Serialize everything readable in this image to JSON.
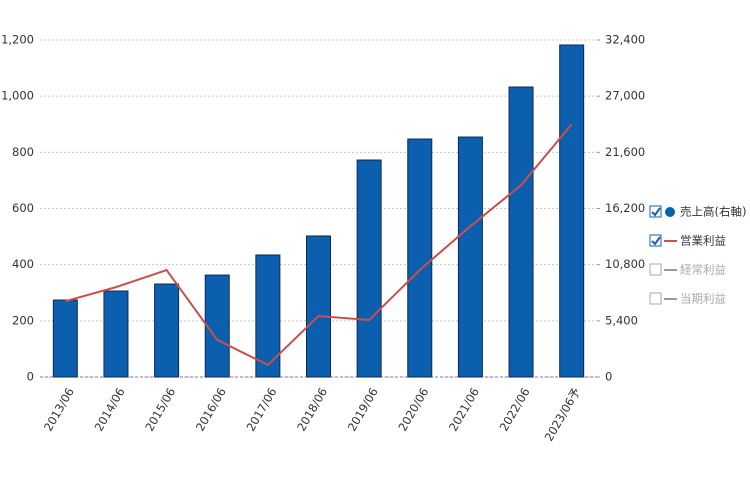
{
  "chart_data": {
    "type": "bar-line",
    "categories": [
      "2013/06",
      "2014/06",
      "2015/06",
      "2016/06",
      "2017/06",
      "2018/06",
      "2019/06",
      "2020/06",
      "2021/06",
      "2022/06",
      "2023/06予"
    ],
    "series": [
      {
        "name": "売上高(右軸)",
        "type": "bar",
        "axis": "y2",
        "color": "#0b5fae",
        "visible": true,
        "values": [
          7400,
          8270,
          8940,
          9800,
          11730,
          13560,
          20860,
          22880,
          23070,
          27880,
          31920
        ]
      },
      {
        "name": "営業利益",
        "type": "line",
        "color": "#c9504a",
        "visible": true,
        "values": [
          270,
          320,
          381,
          132,
          43,
          217,
          203,
          381,
          537,
          683,
          900
        ]
      },
      {
        "name": "経常利益",
        "type": "line",
        "color": "#999999",
        "visible": false
      },
      {
        "name": "当期利益",
        "type": "line",
        "color": "#999999",
        "visible": false
      }
    ],
    "ylim": [
      0,
      1200
    ],
    "yticks": [
      0,
      200,
      400,
      600,
      800,
      {
        "value": 1000,
        "label": "1,000"
      },
      {
        "value": 1200,
        "label": "1,200"
      }
    ],
    "y2lim": [
      0,
      32400
    ],
    "y2ticks": [
      0,
      {
        "value": 5400,
        "label": "5,400"
      },
      {
        "value": 10800,
        "label": "10,800"
      },
      {
        "value": 16200,
        "label": "16,200"
      },
      {
        "value": 21600,
        "label": "21,600"
      },
      {
        "value": 27000,
        "label": "27,000"
      },
      {
        "value": 32400,
        "label": "32,400"
      }
    ],
    "grid": true
  }
}
